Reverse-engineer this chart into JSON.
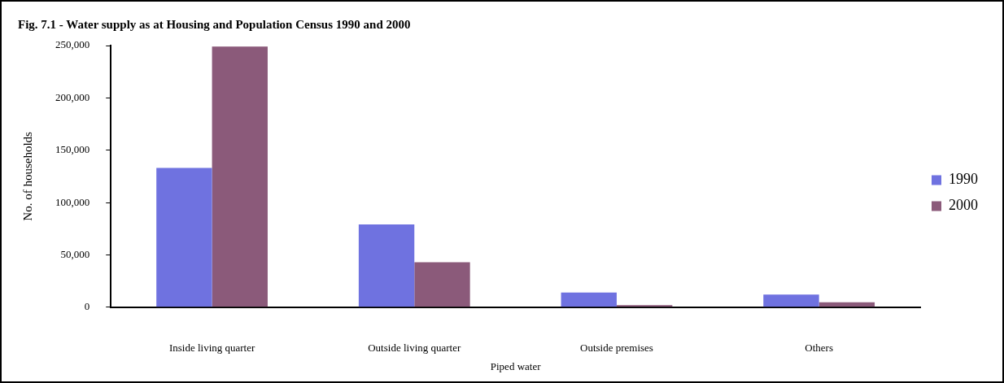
{
  "chart_data": {
    "type": "bar",
    "title": "Fig. 7.1 - Water supply as at Housing and Population Census 1990 and 2000",
    "xlabel": "Piped water",
    "ylabel": "No. of households",
    "categories": [
      "Inside living quarter",
      "Outside living quarter",
      "Outside premises",
      "Others"
    ],
    "series": [
      {
        "name": "1990",
        "color": "#6f72e0",
        "values": [
          133000,
          79000,
          14000,
          12000
        ]
      },
      {
        "name": "2000",
        "color": "#8b5a7a",
        "values": [
          249000,
          43000,
          2000,
          4700
        ]
      }
    ],
    "ylim": [
      0,
      250000
    ],
    "yticks": [
      0,
      {
        "value": 50000,
        "label": "50,000"
      },
      {
        "value": 100000,
        "label": "100,000"
      },
      {
        "value": 150000,
        "label": "150,000"
      },
      {
        "value": 200000,
        "label": "200,000"
      },
      {
        "value": 250000,
        "label": "250,000"
      }
    ],
    "grid": false,
    "legend": "right"
  }
}
